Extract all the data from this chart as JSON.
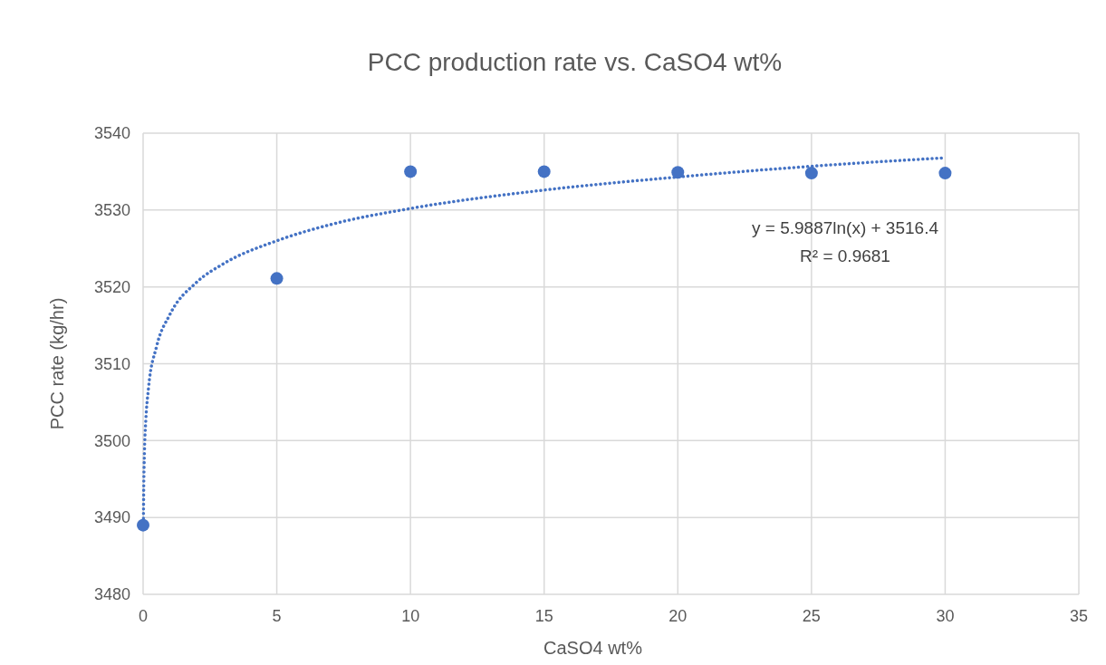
{
  "chart_data": {
    "type": "scatter",
    "title": "PCC production rate vs. CaSO4 wt%",
    "xlabel": "CaSO4 wt%",
    "ylabel": "PCC rate (kg/hr)",
    "x": [
      0,
      5,
      10,
      15,
      20,
      25,
      30
    ],
    "series": [
      {
        "color": "#4472c4",
        "marker": "circle",
        "values": [
          3489,
          3521.1,
          3535,
          3535,
          3534.9,
          3534.8,
          3534.8
        ]
      },
      {
        "type": "line",
        "color": "#4472c4",
        "line_style": "dotted",
        "marker": "none",
        "x": [
          0.012,
          0.02,
          0.05,
          0.1,
          0.2,
          0.5,
          1,
          2,
          3,
          5,
          7,
          10,
          15,
          20,
          25,
          30
        ],
        "values": [
          3489.9,
          3493,
          3498.5,
          3502.6,
          3506.8,
          3512.2,
          3516.4,
          3520.6,
          3523,
          3526,
          3528.1,
          3530.2,
          3532.6,
          3534.3,
          3535.7,
          3536.8
        ]
      }
    ],
    "xlim": [
      0,
      35
    ],
    "xticks": [
      0,
      5,
      10,
      15,
      20,
      25,
      30,
      35
    ],
    "ylim": [
      3480,
      3540
    ],
    "yticks": [
      3480,
      3490,
      3500,
      3510,
      3520,
      3530,
      3540
    ],
    "grid": true,
    "annotations": [
      "y = 5.9887ln(x) + 3516.4",
      "R² = 0.9681"
    ]
  }
}
